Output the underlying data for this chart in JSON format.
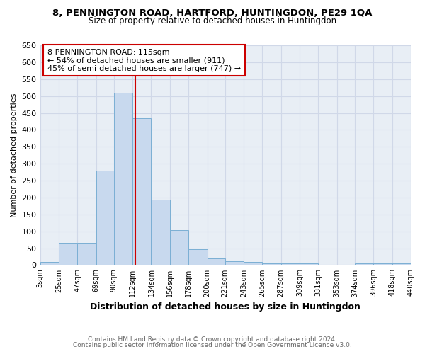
{
  "title": "8, PENNINGTON ROAD, HARTFORD, HUNTINGDON, PE29 1QA",
  "subtitle": "Size of property relative to detached houses in Huntingdon",
  "xlabel": "Distribution of detached houses by size in Huntingdon",
  "ylabel": "Number of detached properties",
  "footnote1": "Contains HM Land Registry data © Crown copyright and database right 2024.",
  "footnote2": "Contains public sector information licensed under the Open Government Licence v3.0.",
  "bin_edges": [
    3,
    25,
    47,
    69,
    90,
    112,
    134,
    156,
    178,
    200,
    221,
    243,
    265,
    287,
    309,
    331,
    353,
    374,
    396,
    418,
    440
  ],
  "bar_heights": [
    10,
    65,
    65,
    280,
    510,
    435,
    193,
    103,
    46,
    19,
    12,
    9,
    5,
    5,
    5,
    0,
    0,
    5,
    5,
    5
  ],
  "bar_color": "#c8d9ee",
  "bar_edge_color": "#7bafd4",
  "property_size": 115,
  "vline_color": "#cc0000",
  "annotation_line1": "8 PENNINGTON ROAD: 115sqm",
  "annotation_line2": "← 54% of detached houses are smaller (911)",
  "annotation_line3": "45% of semi-detached houses are larger (747) →",
  "annotation_box_color": "#ffffff",
  "annotation_box_edge": "#cc0000",
  "ylim": [
    0,
    650
  ],
  "yticks": [
    0,
    50,
    100,
    150,
    200,
    250,
    300,
    350,
    400,
    450,
    500,
    550,
    600,
    650
  ],
  "tick_labels": [
    "3sqm",
    "25sqm",
    "47sqm",
    "69sqm",
    "90sqm",
    "112sqm",
    "134sqm",
    "156sqm",
    "178sqm",
    "200sqm",
    "221sqm",
    "243sqm",
    "265sqm",
    "287sqm",
    "309sqm",
    "331sqm",
    "353sqm",
    "374sqm",
    "396sqm",
    "418sqm",
    "440sqm"
  ],
  "bg_color": "#ffffff",
  "grid_color": "#d0d8e8",
  "plot_bg_color": "#e8eef5"
}
